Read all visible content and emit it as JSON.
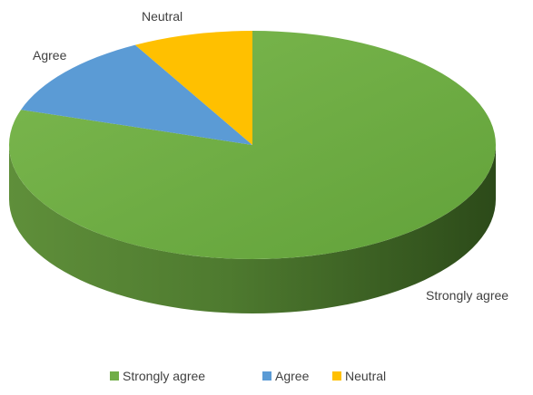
{
  "chart_data": {
    "type": "pie",
    "title": "",
    "categories": [
      "Strongly agree",
      "Agree",
      "Neutral"
    ],
    "values": [
      80,
      12,
      8
    ],
    "colors": [
      "#70ad47",
      "#5b9bd5",
      "#ffc000"
    ],
    "legend_position": "bottom",
    "style": "3d"
  }
}
